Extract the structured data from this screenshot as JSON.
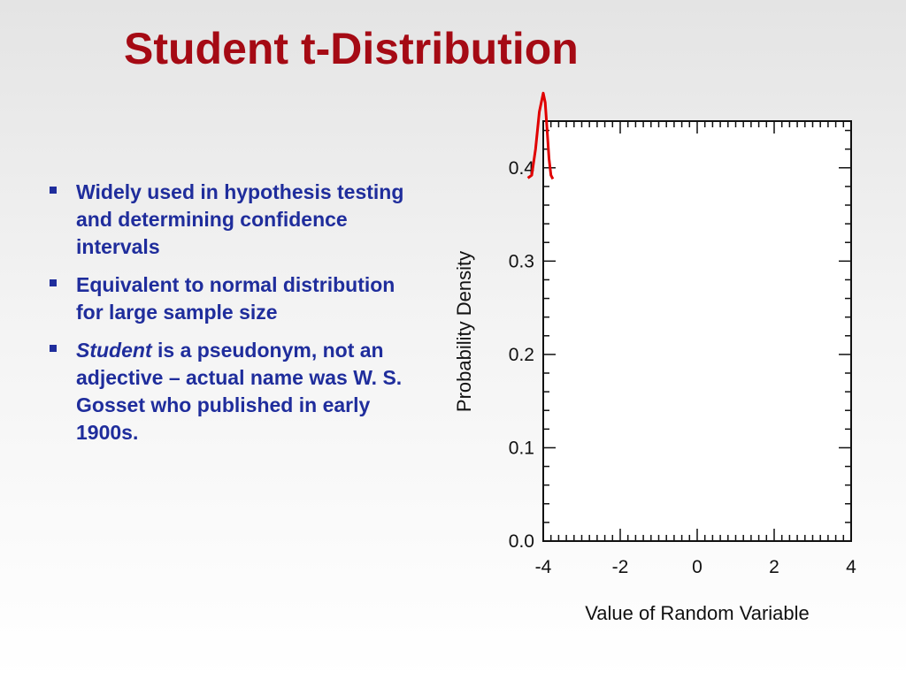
{
  "slide": {
    "title": "Student t-Distribution",
    "accent_color": "#a50a14",
    "text_color": "#1f2d9c"
  },
  "bullets": [
    {
      "lead": "",
      "text": "Widely used in hypothesis testing and determining confidence intervals"
    },
    {
      "lead": "",
      "text": "Equivalent to normal distribution for large sample size"
    },
    {
      "lead": "Student",
      "text": " is a pseudonym, not an adjective – actual name was W. S. Gosset who published in early 1900s."
    }
  ],
  "chart_data": {
    "type": "line",
    "title": "",
    "xlabel": "Value of Random Variable",
    "ylabel": "Probability Density",
    "xlim": [
      -4,
      4
    ],
    "ylim": [
      0,
      0.45
    ],
    "x_ticks": [
      -4,
      -2,
      0,
      2,
      4
    ],
    "x_tick_labels": [
      "-4",
      "-2",
      "0",
      "2",
      "4"
    ],
    "y_ticks": [
      0,
      0.1,
      0.2,
      0.3,
      0.4
    ],
    "y_tick_labels": [
      "0.0",
      "0.1",
      "0.2",
      "0.3",
      "0.4"
    ],
    "grid": false,
    "series": [
      {
        "name": "",
        "color": "#e00000",
        "x": [
          -4.4,
          -4.3,
          -4.2,
          -4.1,
          -4.0,
          -3.95,
          -3.9,
          -3.85,
          -3.8,
          -3.75
        ],
        "y": [
          0.389,
          0.392,
          0.42,
          0.46,
          0.48,
          0.47,
          0.44,
          0.41,
          0.392,
          0.388
        ]
      }
    ]
  }
}
